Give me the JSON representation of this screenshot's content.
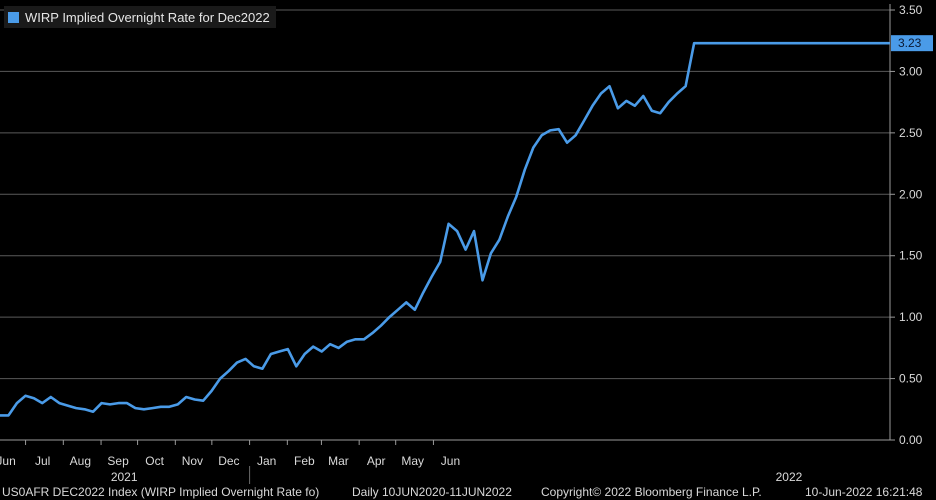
{
  "chart_data": {
    "type": "line",
    "title": "",
    "xlabel": "",
    "ylabel": "",
    "ylim": [
      0,
      3.5
    ],
    "y_ticks": [
      "3.50",
      "3.00",
      "2.50",
      "2.00",
      "1.50",
      "1.00",
      "0.50",
      "0.00"
    ],
    "x_month_labels": [
      "Jun",
      "Jul",
      "Aug",
      "Sep",
      "Oct",
      "Nov",
      "Dec",
      "Jan",
      "Feb",
      "Mar",
      "Apr",
      "May",
      "Jun"
    ],
    "x_year_labels": [
      "2021",
      "2022"
    ],
    "grid": true,
    "legend_position": "top-left",
    "last_value_label": "3.23",
    "series": [
      {
        "name": "WIRP Implied Overnight Rate for Dec2022",
        "color": "#4a9be8",
        "x": [
          "2020-06-10",
          "2020-06-20",
          "2020-06-28",
          "2020-07-05",
          "2020-07-12",
          "2020-07-19",
          "2020-07-26",
          "2020-08-02",
          "2020-08-09",
          "2020-08-16",
          "2020-08-23",
          "2020-08-30",
          "2020-09-06",
          "2020-09-13",
          "2020-09-20",
          "2020-09-27",
          "2020-10-04",
          "2020-10-11",
          "2020-10-18",
          "2020-10-25",
          "2020-11-01",
          "2020-11-08",
          "2020-11-15",
          "2020-11-22",
          "2020-11-29",
          "2020-12-06",
          "2020-12-13",
          "2020-12-20",
          "2020-12-27",
          "2021-01-03",
          "2021-01-10",
          "2021-01-17",
          "2021-01-24",
          "2021-01-31",
          "2021-02-07",
          "2021-02-14",
          "2021-02-21",
          "2021-02-28",
          "2021-03-07",
          "2021-03-14",
          "2021-03-21",
          "2021-03-28",
          "2021-04-04",
          "2021-04-11",
          "2021-04-18",
          "2021-04-25",
          "2021-05-02",
          "2021-05-09",
          "2021-05-16",
          "2021-05-23",
          "2021-05-30",
          "2021-06-06",
          "2021-06-13",
          "2021-06-20",
          "2021-06-27",
          "2021-07-04",
          "2021-07-11",
          "2021-07-18",
          "2021-07-25",
          "2021-08-01",
          "2021-08-08",
          "2021-08-15",
          "2021-08-22",
          "2021-08-29",
          "2021-09-05",
          "2021-09-12",
          "2021-09-19",
          "2021-09-26",
          "2021-10-03",
          "2021-10-10",
          "2021-10-17",
          "2021-10-24",
          "2021-10-31",
          "2021-11-07",
          "2021-11-14",
          "2021-11-21",
          "2021-11-28",
          "2021-12-05",
          "2021-12-12",
          "2021-12-19",
          "2021-12-26",
          "2022-01-02",
          "2022-01-09",
          "2022-01-16",
          "2022-01-23",
          "2022-01-30",
          "2022-02-06",
          "2022-02-13",
          "2022-02-20",
          "2022-02-27",
          "2022-03-06",
          "2022-03-13",
          "2022-03-20",
          "2022-03-27",
          "2022-04-03",
          "2022-04-10",
          "2022-04-17",
          "2022-04-24",
          "2022-05-01",
          "2022-05-08",
          "2022-05-15",
          "2022-05-22",
          "2022-05-29",
          "2022-06-05",
          "2022-06-08",
          "2022-06-10"
        ],
        "values": [
          0.2,
          0.2,
          0.3,
          0.36,
          0.34,
          0.3,
          0.35,
          0.3,
          0.28,
          0.26,
          0.25,
          0.23,
          0.3,
          0.29,
          0.3,
          0.3,
          0.26,
          0.25,
          0.26,
          0.27,
          0.27,
          0.29,
          0.35,
          0.33,
          0.32,
          0.4,
          0.5,
          0.56,
          0.63,
          0.66,
          0.6,
          0.58,
          0.7,
          0.72,
          0.74,
          0.6,
          0.7,
          0.76,
          0.72,
          0.78,
          0.75,
          0.8,
          0.82,
          0.82,
          0.87,
          0.93,
          1.0,
          1.06,
          1.12,
          1.06,
          1.2,
          1.33,
          1.45,
          1.76,
          1.7,
          1.55,
          1.7,
          1.3,
          1.52,
          1.63,
          1.82,
          1.98,
          2.2,
          2.38,
          2.48,
          2.52,
          2.53,
          2.42,
          2.48,
          2.6,
          2.72,
          2.82,
          2.88,
          2.7,
          2.76,
          2.72,
          2.8,
          2.68,
          2.66,
          2.75,
          2.82,
          2.88,
          3.23,
          3.23,
          3.23,
          3.23,
          3.23,
          3.23,
          3.23,
          3.23,
          3.23,
          3.23,
          3.23,
          3.23,
          3.23,
          3.23,
          3.23,
          3.23,
          3.23,
          3.23,
          3.23,
          3.23,
          3.23,
          3.23,
          3.23,
          3.23
        ]
      }
    ]
  },
  "footer": {
    "index": "US0AFR DEC2022 Index (WIRP Implied Overnight Rate fo)",
    "range": "Daily 10JUN2020-11JUN2022",
    "copyright": "Copyright© 2022 Bloomberg Finance L.P.",
    "timestamp": "10-Jun-2022 16:21:48"
  }
}
